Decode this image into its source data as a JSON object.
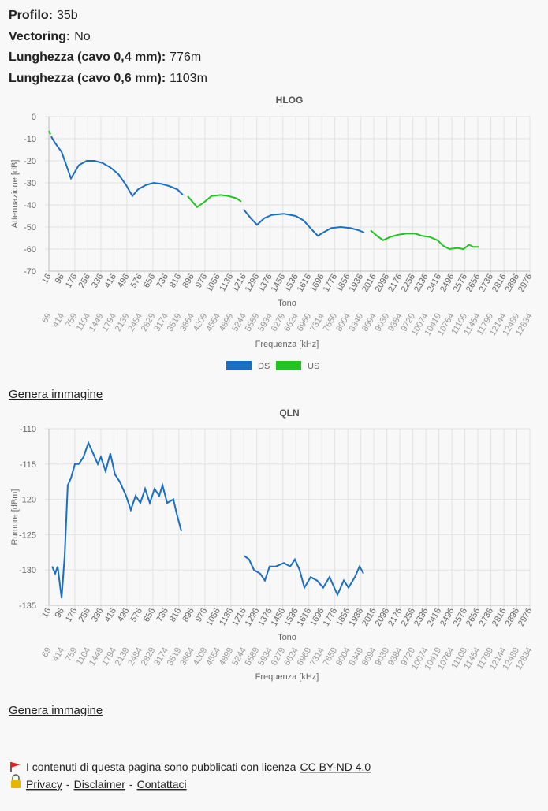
{
  "info": [
    {
      "label": "Profilo:",
      "value": "35b"
    },
    {
      "label": "Vectoring:",
      "value": "No"
    },
    {
      "label": "Lunghezza (cavo 0,4 mm):",
      "value": "776m"
    },
    {
      "label": "Lunghezza (cavo 0,6 mm):",
      "value": "1103m"
    }
  ],
  "chart_data": [
    {
      "type": "line",
      "title": "HLOG",
      "ylabel": "Attenuazione [dB]",
      "xlabel": "Tono",
      "x2label": "Frequenza [kHz]",
      "xlim": [
        16,
        2976
      ],
      "xticks": [
        16,
        96,
        176,
        256,
        336,
        416,
        496,
        576,
        656,
        736,
        816,
        896,
        976,
        1056,
        1136,
        1216,
        1296,
        1376,
        1456,
        1536,
        1616,
        1696,
        1776,
        1856,
        1936,
        2016,
        2096,
        2176,
        2256,
        2336,
        2416,
        2496,
        2576,
        2656,
        2736,
        2816,
        2896,
        2976
      ],
      "x2lim": [
        69,
        12834
      ],
      "x2ticks": [
        69,
        414,
        759,
        1104,
        1449,
        1794,
        2139,
        2484,
        2829,
        3174,
        3519,
        3864,
        4209,
        4554,
        4899,
        5244,
        5589,
        5934,
        6279,
        6624,
        6969,
        7314,
        7659,
        8004,
        8349,
        8694,
        9039,
        9384,
        9729,
        10074,
        10419,
        10764,
        11109,
        11454,
        11799,
        12144,
        12489,
        12834
      ],
      "ylim": [
        -70,
        0
      ],
      "yticks": [
        0,
        -10,
        -20,
        -30,
        -40,
        -50,
        -60,
        -70
      ],
      "grid": true,
      "legend": "bottom",
      "series": [
        {
          "name": "DS",
          "color": "#1a6ec4",
          "x": [
            30,
            55,
            94,
            123,
            152,
            176,
            200,
            249,
            297,
            346,
            394,
            443,
            491,
            530,
            564,
            613,
            661,
            710,
            758,
            807,
            841,
            null,
            1214,
            1258,
            1297,
            1341,
            1389,
            1462,
            1535,
            1583,
            1632,
            1671,
            1704,
            1753,
            1811,
            1874,
            1923,
            1957
          ],
          "values": [
            -9,
            -12,
            -16,
            -22,
            -28,
            -25,
            -22,
            -20,
            -20,
            -21,
            -23,
            -26,
            -31,
            -36,
            -33,
            -31,
            -30,
            -30.5,
            -31.5,
            -33,
            -35.5,
            null,
            -42,
            -46,
            -49,
            -46,
            -44.5,
            -44,
            -45,
            -47,
            -51,
            -54,
            -52.5,
            -50.5,
            -50,
            -50.5,
            -51.5,
            -52.5
          ]
        },
        {
          "name": "US",
          "color": "#22c322",
          "x": [
            16,
            26,
            null,
            870,
            928,
            967,
            1016,
            1074,
            1122,
            1171,
            1200,
            null,
            1996,
            2035,
            2073,
            2117,
            2165,
            2214,
            2272,
            2311,
            2360,
            2408,
            2442,
            2481,
            2530,
            2568,
            2602,
            2626,
            2660
          ],
          "values": [
            -6.5,
            -8,
            null,
            -36,
            -41,
            -39,
            -36,
            -35.5,
            -36,
            -37,
            -38.5,
            null,
            -51.5,
            -54,
            -56,
            -54.5,
            -53.5,
            -53,
            -53,
            -54,
            -54.5,
            -56,
            -58.5,
            -60,
            -59.5,
            -60,
            -58,
            -59,
            -59
          ]
        }
      ]
    },
    {
      "type": "line",
      "title": "QLN",
      "ylabel": "Rumore [dBm]",
      "xlabel": "Tono",
      "x2label": "Frequenza [kHz]",
      "xlim": [
        16,
        2976
      ],
      "xticks": [
        16,
        96,
        176,
        256,
        336,
        416,
        496,
        576,
        656,
        736,
        816,
        896,
        976,
        1056,
        1136,
        1216,
        1296,
        1376,
        1456,
        1536,
        1616,
        1696,
        1776,
        1856,
        1936,
        2016,
        2096,
        2176,
        2256,
        2336,
        2416,
        2496,
        2576,
        2656,
        2736,
        2816,
        2896,
        2976
      ],
      "x2lim": [
        69,
        12834
      ],
      "x2ticks": [
        69,
        414,
        759,
        1104,
        1449,
        1794,
        2139,
        2484,
        2829,
        3174,
        3519,
        3864,
        4209,
        4554,
        4899,
        5244,
        5589,
        5934,
        6279,
        6624,
        6969,
        7314,
        7659,
        8004,
        8349,
        8694,
        9039,
        9384,
        9729,
        10074,
        10419,
        10764,
        11109,
        11454,
        11799,
        12144,
        12489,
        12834
      ],
      "ylim": [
        -135,
        -110
      ],
      "yticks": [
        -110,
        -115,
        -120,
        -125,
        -130,
        -135
      ],
      "grid": true,
      "series": [
        {
          "color": "#1a6ec4",
          "x": [
            36,
            55,
            70,
            94,
            113,
            132,
            152,
            176,
            200,
            229,
            259,
            288,
            317,
            336,
            365,
            394,
            423,
            452,
            491,
            520,
            550,
            579,
            608,
            637,
            666,
            695,
            715,
            744,
            782,
            802,
            831,
            null,
            1219,
            1248,
            1278,
            1316,
            1345,
            1374,
            1413,
            1462,
            1501,
            1530,
            1559,
            1588,
            1627,
            1666,
            1704,
            1743,
            1792,
            1831,
            1860,
            1899,
            1928,
            1952
          ],
          "values": [
            -129.5,
            -130.5,
            -129.5,
            -134,
            -128,
            -118,
            -117,
            -115,
            -115,
            -114,
            -112,
            -113.5,
            -115,
            -114,
            -116,
            -113.5,
            -116.5,
            -117.5,
            -119.5,
            -121.5,
            -119.5,
            -120.5,
            -118.5,
            -120.5,
            -118.5,
            -119.5,
            -118,
            -120.5,
            -120,
            -122,
            -124.5,
            null,
            -128,
            -128.5,
            -130,
            -130.5,
            -131.5,
            -129.5,
            -129.5,
            -129,
            -129.5,
            -128.5,
            -130,
            -132.5,
            -131,
            -131.5,
            -132.5,
            -131,
            -133.5,
            -131.5,
            -132.5,
            -131,
            -129.5,
            -130.5
          ]
        }
      ]
    }
  ],
  "actions": [
    "Genera immagine",
    "Genera immagine"
  ],
  "footer": {
    "license_text": "I contenuti di questa pagina sono pubblicati con licenza",
    "license_link": "CC BY-ND 4.0",
    "links": [
      "Privacy",
      "Disclaimer",
      "Contattaci"
    ],
    "separator": "-"
  }
}
